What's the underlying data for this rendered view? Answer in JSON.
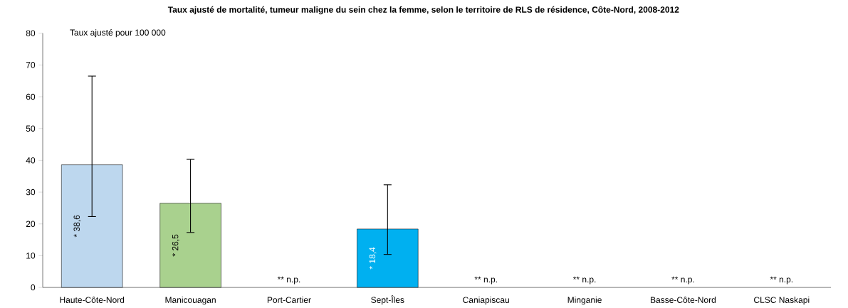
{
  "chart_data": {
    "type": "bar",
    "title": "Taux ajusté de mortalité, tumeur maligne du sein chez la femme, selon le territoire de RLS de résidence, Côte-Nord, 2008-2012",
    "ylabel": "Taux ajusté pour 100 000",
    "categories": [
      "Haute-Côte-Nord",
      "Manicouagan",
      "Port-Cartier",
      "Sept-Îles",
      "Caniapiscau",
      "Minganie",
      "Basse-Côte-Nord",
      "CLSC Naskapi"
    ],
    "values": [
      38.6,
      26.5,
      null,
      18.4,
      null,
      null,
      null,
      null
    ],
    "colors": [
      "#bdd7ee",
      "#a9d18e",
      "#ffffff",
      "#00b0f0",
      "#ffffff",
      "#ffffff",
      "#ffffff",
      "#ffffff"
    ],
    "errors": [
      [
        22.3,
        66.5
      ],
      [
        17.3,
        40.3
      ],
      null,
      [
        10.4,
        32.3
      ],
      null,
      null,
      null,
      null
    ],
    "value_labels": [
      "* 38,6",
      "* 26,5",
      "** n.p.",
      "* 18,4",
      "** n.p.",
      "** n.p.",
      "** n.p.",
      "** n.p."
    ],
    "ylim": [
      0,
      80
    ],
    "yticks": [
      0,
      10,
      20,
      30,
      40,
      50,
      60,
      70,
      80
    ],
    "grid": false
  }
}
